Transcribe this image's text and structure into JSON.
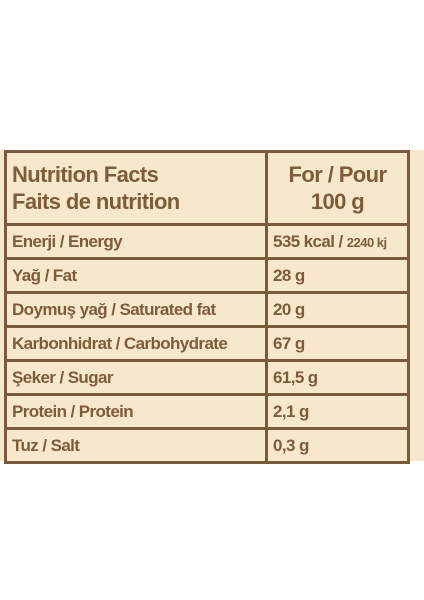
{
  "header": {
    "title_en": "Nutrition Facts",
    "title_fr": "Faits de nutrition",
    "per_label": "For / Pour",
    "per_amount": "100 g"
  },
  "rows": [
    {
      "label": "Enerji / Energy",
      "value": "535 kcal /",
      "value_extra": "2240 kj"
    },
    {
      "label": "Yağ / Fat",
      "value": "28 g"
    },
    {
      "label": "Doymuş yağ / Saturated fat",
      "value": "20 g"
    },
    {
      "label": "Karbonhidrat / Carbohydrate",
      "value": "67 g"
    },
    {
      "label": "Şeker / Sugar",
      "value": "61,5 g"
    },
    {
      "label": "Protein / Protein",
      "value": "2,1 g"
    },
    {
      "label": "Tuz / Salt",
      "value": "0,3 g"
    }
  ],
  "colors": {
    "background": "#f7e8cb",
    "text": "#7d5c3c",
    "border": "#7a5a3a"
  }
}
